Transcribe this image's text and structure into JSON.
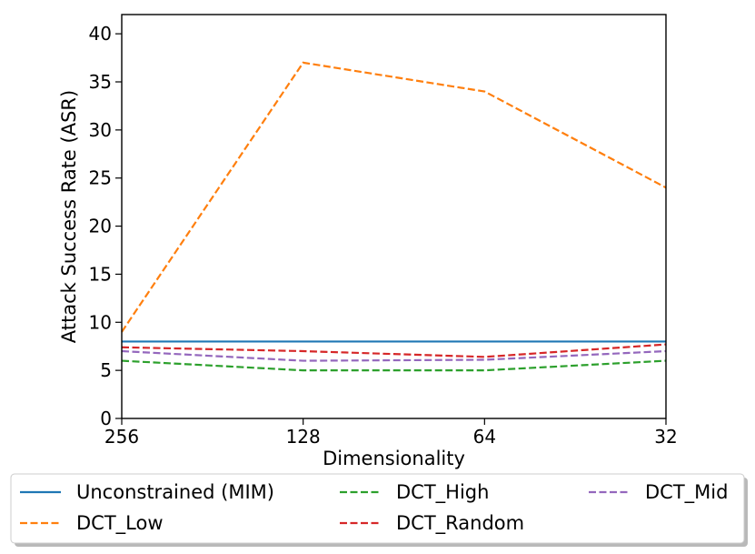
{
  "chart_data": {
    "type": "line",
    "xlabel": "Dimensionality",
    "ylabel": "Attack Success Rate (ASR)",
    "categories": [
      "256",
      "128",
      "64",
      "32"
    ],
    "ylim": [
      0,
      42
    ],
    "yticks": [
      0,
      5,
      10,
      15,
      20,
      25,
      30,
      35,
      40
    ],
    "grid": false,
    "legend_position": "bottom",
    "series": [
      {
        "name": "Unconstrained (MIM)",
        "values": [
          8,
          8,
          8,
          8
        ],
        "color": "#1f77b4",
        "style": "solid"
      },
      {
        "name": "DCT_Low",
        "values": [
          9,
          37,
          34,
          24
        ],
        "color": "#ff7f0e",
        "style": "dashed"
      },
      {
        "name": "DCT_High",
        "values": [
          6,
          5,
          5,
          6
        ],
        "color": "#2ca02c",
        "style": "dashed"
      },
      {
        "name": "DCT_Random",
        "values": [
          7.4,
          7,
          6.4,
          7.7
        ],
        "color": "#d62728",
        "style": "dashed"
      },
      {
        "name": "DCT_Mid",
        "values": [
          7,
          6,
          6.1,
          7
        ],
        "color": "#9467bd",
        "style": "dashed"
      }
    ]
  }
}
